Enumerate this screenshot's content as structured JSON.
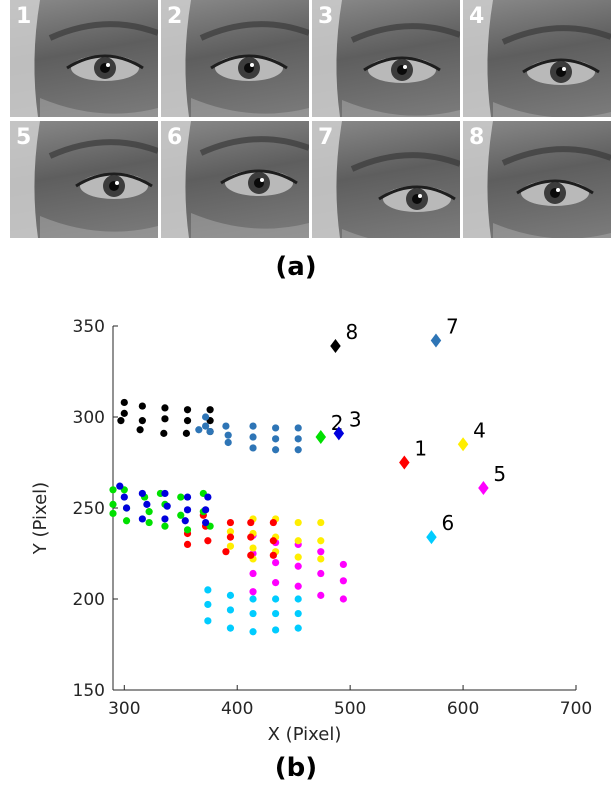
{
  "panel_a": {
    "caption": "(a)",
    "photos": [
      {
        "label": "1"
      },
      {
        "label": "2"
      },
      {
        "label": "3"
      },
      {
        "label": "4"
      },
      {
        "label": "5"
      },
      {
        "label": "6"
      },
      {
        "label": "7"
      },
      {
        "label": "8"
      }
    ]
  },
  "panel_b": {
    "caption": "(b)"
  },
  "chart_data": {
    "type": "scatter",
    "xlabel": "X (Pixel)",
    "ylabel": "Y (Pixel)",
    "xlim": [
      290,
      700
    ],
    "ylim": [
      150,
      350
    ],
    "xticks": [
      300,
      400,
      500,
      600,
      700
    ],
    "yticks": [
      150,
      200,
      250,
      300,
      350
    ],
    "grid": false,
    "series": [
      {
        "color": "#000000",
        "points": [
          [
            297,
            298
          ],
          [
            300,
            308
          ],
          [
            300,
            302
          ],
          [
            316,
            306
          ],
          [
            316,
            298
          ],
          [
            314,
            293
          ],
          [
            336,
            305
          ],
          [
            336,
            299
          ],
          [
            335,
            291
          ],
          [
            356,
            304
          ],
          [
            356,
            298
          ],
          [
            355,
            291
          ],
          [
            376,
            304
          ],
          [
            376,
            298
          ],
          [
            376,
            292
          ]
        ]
      },
      {
        "color": "#2e75b6",
        "points": [
          [
            366,
            293
          ],
          [
            372,
            300
          ],
          [
            372,
            295
          ],
          [
            376,
            292
          ],
          [
            390,
            295
          ],
          [
            392,
            290
          ],
          [
            392,
            286
          ],
          [
            414,
            295
          ],
          [
            414,
            289
          ],
          [
            414,
            283
          ],
          [
            434,
            294
          ],
          [
            434,
            288
          ],
          [
            434,
            282
          ],
          [
            454,
            294
          ],
          [
            454,
            288
          ],
          [
            454,
            282
          ]
        ]
      },
      {
        "color": "#00ccff",
        "points": [
          [
            374,
            205
          ],
          [
            374,
            197
          ],
          [
            374,
            188
          ],
          [
            394,
            202
          ],
          [
            394,
            194
          ],
          [
            394,
            184
          ],
          [
            414,
            200
          ],
          [
            414,
            192
          ],
          [
            414,
            182
          ],
          [
            434,
            200
          ],
          [
            434,
            192
          ],
          [
            434,
            183
          ],
          [
            454,
            200
          ],
          [
            454,
            192
          ],
          [
            454,
            184
          ]
        ]
      },
      {
        "color": "#ff00ff",
        "points": [
          [
            414,
            235
          ],
          [
            414,
            225
          ],
          [
            414,
            214
          ],
          [
            414,
            204
          ],
          [
            434,
            231
          ],
          [
            434,
            220
          ],
          [
            434,
            209
          ],
          [
            454,
            230
          ],
          [
            454,
            218
          ],
          [
            454,
            207
          ],
          [
            474,
            226
          ],
          [
            474,
            214
          ],
          [
            474,
            202
          ],
          [
            494,
            219
          ],
          [
            494,
            210
          ],
          [
            494,
            200
          ]
        ]
      },
      {
        "color": "#ffee00",
        "points": [
          [
            394,
            237
          ],
          [
            394,
            229
          ],
          [
            414,
            244
          ],
          [
            414,
            236
          ],
          [
            414,
            228
          ],
          [
            414,
            222
          ],
          [
            434,
            244
          ],
          [
            434,
            234
          ],
          [
            434,
            226
          ],
          [
            454,
            242
          ],
          [
            454,
            232
          ],
          [
            454,
            223
          ],
          [
            474,
            242
          ],
          [
            474,
            232
          ],
          [
            474,
            222
          ]
        ]
      },
      {
        "color": "#ff0000",
        "points": [
          [
            394,
            242
          ],
          [
            394,
            234
          ],
          [
            390,
            226
          ],
          [
            412,
            242
          ],
          [
            412,
            234
          ],
          [
            412,
            224
          ],
          [
            432,
            242
          ],
          [
            432,
            232
          ],
          [
            432,
            224
          ],
          [
            370,
            246
          ],
          [
            372,
            240
          ],
          [
            374,
            232
          ],
          [
            356,
            236
          ],
          [
            356,
            230
          ]
        ]
      },
      {
        "color": "#00e000",
        "points": [
          [
            290,
            260
          ],
          [
            290,
            252
          ],
          [
            290,
            247
          ],
          [
            300,
            260
          ],
          [
            302,
            250
          ],
          [
            302,
            243
          ],
          [
            318,
            256
          ],
          [
            322,
            248
          ],
          [
            322,
            242
          ],
          [
            332,
            258
          ],
          [
            336,
            252
          ],
          [
            336,
            240
          ],
          [
            350,
            256
          ],
          [
            350,
            246
          ],
          [
            356,
            238
          ],
          [
            370,
            258
          ],
          [
            370,
            248
          ],
          [
            376,
            240
          ]
        ]
      },
      {
        "color": "#0000dd",
        "points": [
          [
            296,
            262
          ],
          [
            300,
            256
          ],
          [
            302,
            250
          ],
          [
            316,
            258
          ],
          [
            320,
            252
          ],
          [
            316,
            244
          ],
          [
            336,
            258
          ],
          [
            338,
            251
          ],
          [
            336,
            244
          ],
          [
            356,
            256
          ],
          [
            356,
            249
          ],
          [
            354,
            243
          ],
          [
            374,
            256
          ],
          [
            372,
            249
          ],
          [
            372,
            242
          ]
        ]
      }
    ],
    "markers": [
      {
        "label": "1",
        "x": 548,
        "y": 275,
        "color": "#ff0000"
      },
      {
        "label": "2",
        "x": 474,
        "y": 289,
        "color": "#00e000"
      },
      {
        "label": "3",
        "x": 490,
        "y": 291,
        "color": "#0000dd"
      },
      {
        "label": "4",
        "x": 600,
        "y": 285,
        "color": "#ffee00"
      },
      {
        "label": "5",
        "x": 618,
        "y": 261,
        "color": "#ff00ff"
      },
      {
        "label": "6",
        "x": 572,
        "y": 234,
        "color": "#00ccff"
      },
      {
        "label": "7",
        "x": 576,
        "y": 342,
        "color": "#2e75b6"
      },
      {
        "label": "8",
        "x": 487,
        "y": 339,
        "color": "#000000"
      }
    ]
  }
}
